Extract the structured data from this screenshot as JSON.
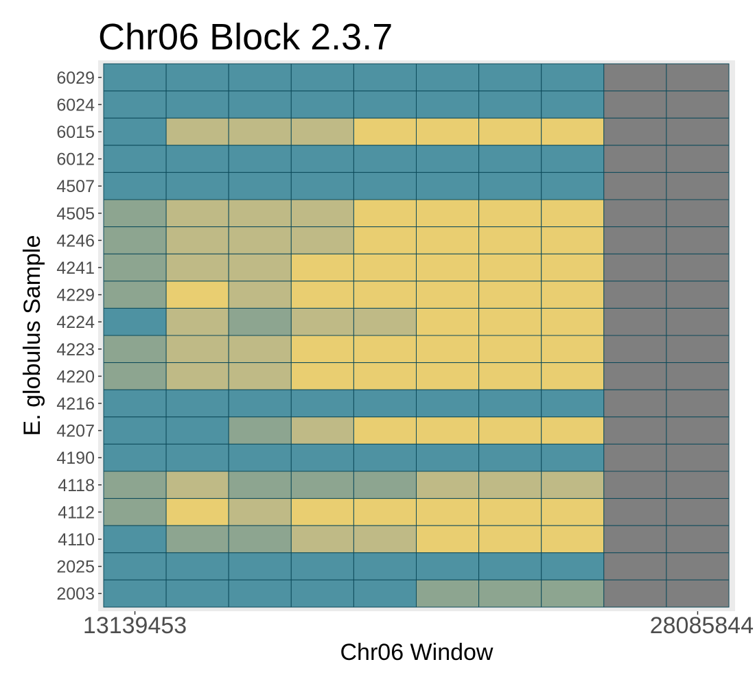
{
  "chart_data": {
    "type": "heatmap",
    "title": "Chr06 Block 2.3.7",
    "xlabel": "Chr06 Window",
    "ylabel": "E. globulus Sample",
    "x_tick_labels": [
      "13139453",
      "28085844"
    ],
    "rows": [
      "6029",
      "6024",
      "6015",
      "6012",
      "4507",
      "4505",
      "4246",
      "4241",
      "4229",
      "4224",
      "4223",
      "4220",
      "4216",
      "4207",
      "4190",
      "4118",
      "4112",
      "4110",
      "2025",
      "2003"
    ],
    "n_columns": 10,
    "legend": "none",
    "grid": true,
    "colors": {
      "T": "#4e92a2",
      "G": "#8da590",
      "O": "#bfba86",
      "Y": "#e9ce71",
      "N": "#7f7f7f",
      "cell_border": "#0c4a5a",
      "panel_background": "#ebebeb"
    },
    "cells": [
      [
        "T",
        "T",
        "T",
        "T",
        "T",
        "T",
        "T",
        "T",
        "N",
        "N"
      ],
      [
        "T",
        "T",
        "T",
        "T",
        "T",
        "T",
        "T",
        "T",
        "N",
        "N"
      ],
      [
        "T",
        "O",
        "O",
        "O",
        "Y",
        "Y",
        "Y",
        "Y",
        "N",
        "N"
      ],
      [
        "T",
        "T",
        "T",
        "T",
        "T",
        "T",
        "T",
        "T",
        "N",
        "N"
      ],
      [
        "T",
        "T",
        "T",
        "T",
        "T",
        "T",
        "T",
        "T",
        "N",
        "N"
      ],
      [
        "G",
        "O",
        "O",
        "O",
        "Y",
        "Y",
        "Y",
        "Y",
        "N",
        "N"
      ],
      [
        "G",
        "O",
        "O",
        "O",
        "Y",
        "Y",
        "Y",
        "Y",
        "N",
        "N"
      ],
      [
        "G",
        "O",
        "O",
        "Y",
        "Y",
        "Y",
        "Y",
        "Y",
        "N",
        "N"
      ],
      [
        "G",
        "Y",
        "O",
        "Y",
        "Y",
        "Y",
        "Y",
        "Y",
        "N",
        "N"
      ],
      [
        "T",
        "O",
        "G",
        "O",
        "O",
        "Y",
        "Y",
        "Y",
        "N",
        "N"
      ],
      [
        "G",
        "O",
        "O",
        "Y",
        "Y",
        "Y",
        "Y",
        "Y",
        "N",
        "N"
      ],
      [
        "G",
        "O",
        "O",
        "Y",
        "Y",
        "Y",
        "Y",
        "Y",
        "N",
        "N"
      ],
      [
        "T",
        "T",
        "T",
        "T",
        "T",
        "T",
        "T",
        "T",
        "N",
        "N"
      ],
      [
        "T",
        "T",
        "G",
        "O",
        "Y",
        "Y",
        "Y",
        "Y",
        "N",
        "N"
      ],
      [
        "T",
        "T",
        "T",
        "T",
        "T",
        "T",
        "T",
        "T",
        "N",
        "N"
      ],
      [
        "G",
        "O",
        "G",
        "G",
        "G",
        "O",
        "O",
        "O",
        "N",
        "N"
      ],
      [
        "G",
        "Y",
        "O",
        "Y",
        "Y",
        "Y",
        "Y",
        "Y",
        "N",
        "N"
      ],
      [
        "T",
        "G",
        "G",
        "O",
        "O",
        "Y",
        "Y",
        "Y",
        "N",
        "N"
      ],
      [
        "T",
        "T",
        "T",
        "T",
        "T",
        "T",
        "T",
        "T",
        "N",
        "N"
      ],
      [
        "T",
        "T",
        "T",
        "T",
        "T",
        "G",
        "G",
        "G",
        "N",
        "N"
      ]
    ]
  }
}
